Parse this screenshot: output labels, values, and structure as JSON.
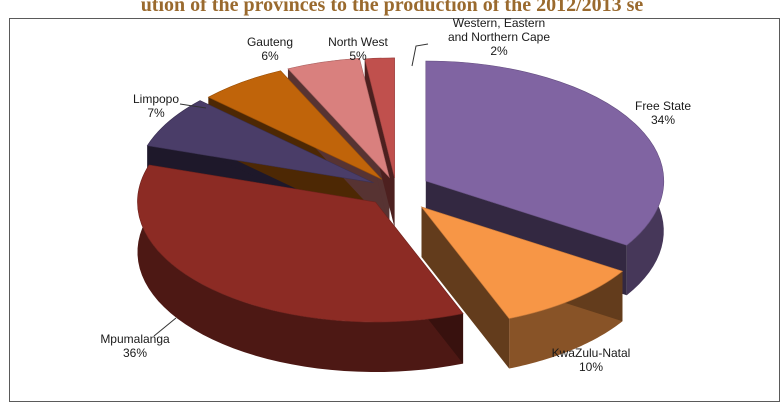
{
  "title": "ution of the provinces to the production of the 2012/2013 se",
  "chart_data": {
    "type": "pie",
    "title": "ution of the provinces to the production of the 2012/2013 se",
    "slices": [
      {
        "name": "Free State",
        "value": 34,
        "label": "34%",
        "color": "#8064a2"
      },
      {
        "name": "KwaZulu-Natal",
        "value": 10,
        "label": "10%",
        "color": "#f79646"
      },
      {
        "name": "Mpumalanga",
        "value": 36,
        "label": "36%",
        "color": "#8c2b24"
      },
      {
        "name": "Limpopo",
        "value": 7,
        "label": "7%",
        "color": "#4a3d68"
      },
      {
        "name": "Gauteng",
        "value": 6,
        "label": "6%",
        "color": "#c0640a"
      },
      {
        "name": "North West",
        "value": 5,
        "label": "5%",
        "color": "#d9807e"
      },
      {
        "name": "Western, Eastern and Northern Cape",
        "value": 2,
        "label": "2%",
        "color": "#c0504d"
      }
    ],
    "exploded": true,
    "style": "3d"
  }
}
